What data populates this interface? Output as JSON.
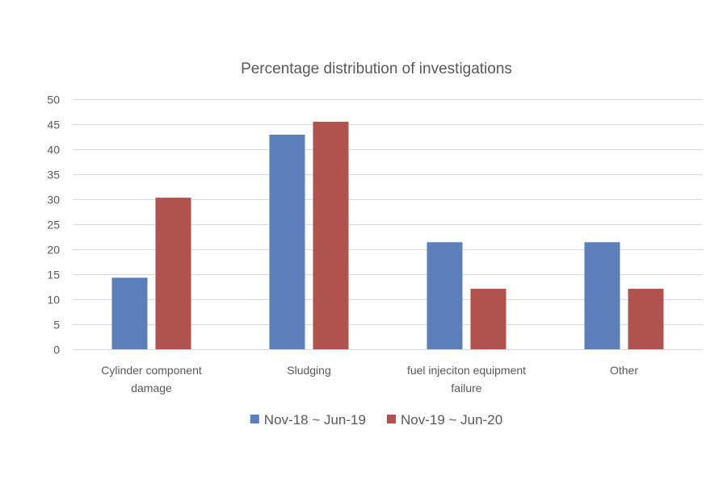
{
  "chart_data": {
    "type": "bar",
    "title": "Percentage distribution of investigations",
    "xlabel": "",
    "ylabel": "",
    "ylim": [
      0,
      50
    ],
    "yticks": [
      0,
      5,
      10,
      15,
      20,
      25,
      30,
      35,
      40,
      45,
      50
    ],
    "grid": true,
    "legend_position": "bottom",
    "categories": [
      [
        "Cylinder component",
        "damage"
      ],
      [
        "Sludging"
      ],
      [
        "fuel injeciton equipment",
        "failure"
      ],
      [
        "Other"
      ]
    ],
    "series": [
      {
        "name": "Nov-18 ~ Jun-19",
        "color": "#5b7fba",
        "values": [
          14.3,
          42.9,
          21.4,
          21.4
        ]
      },
      {
        "name": "Nov-19 ~ Jun-20",
        "color": "#b0524e",
        "values": [
          30.3,
          45.5,
          12.1,
          12.1
        ]
      }
    ]
  }
}
